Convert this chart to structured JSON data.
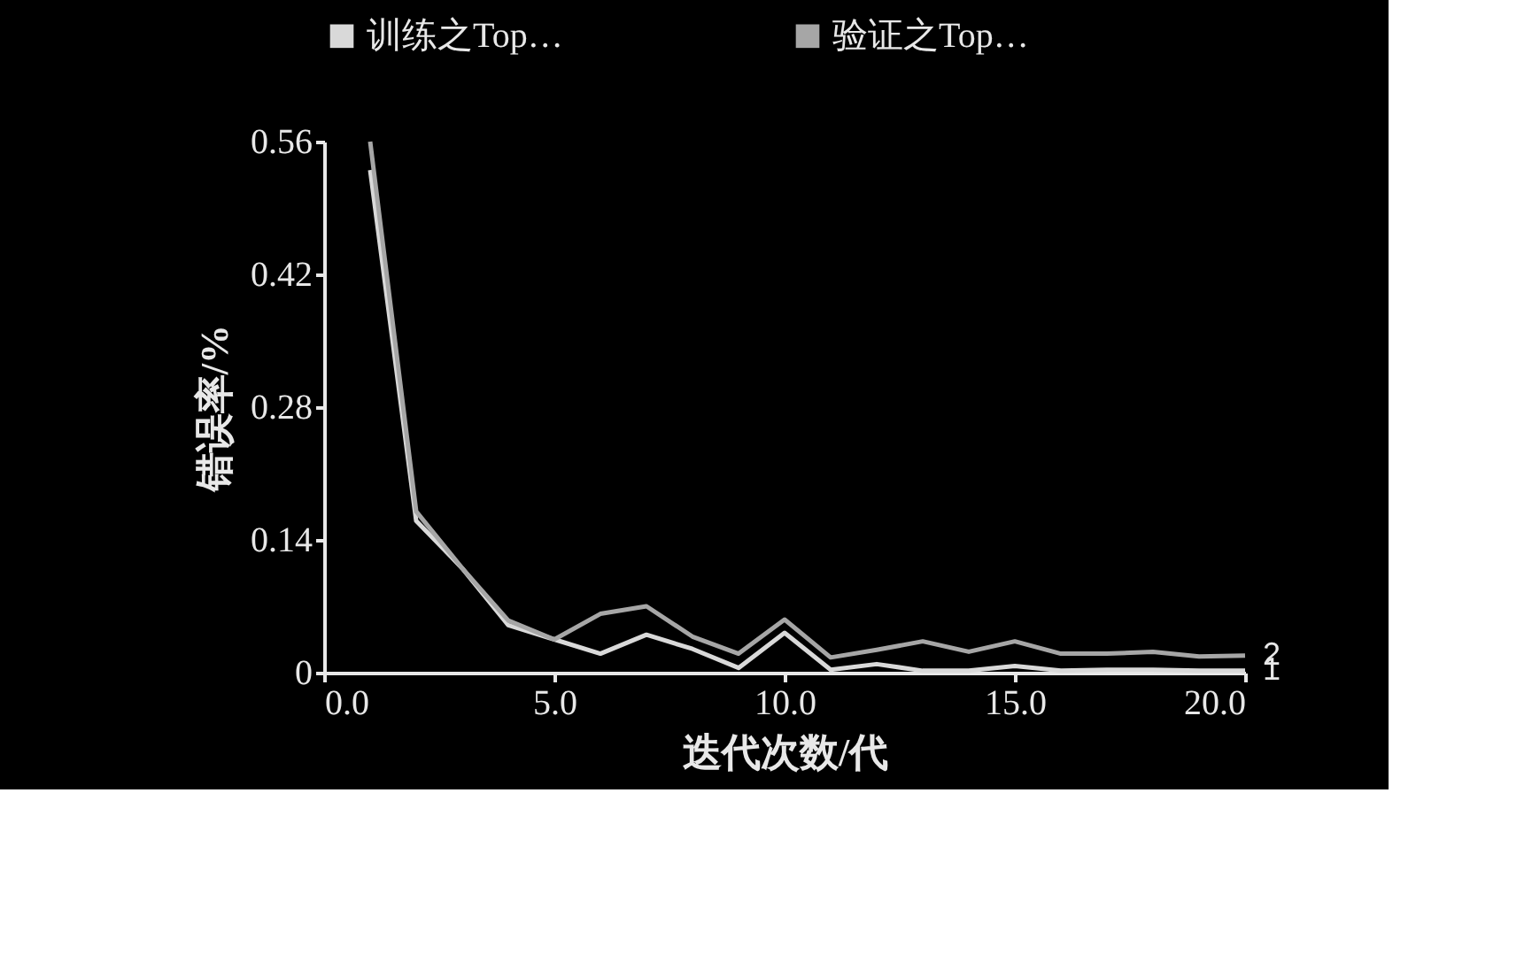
{
  "chart_data": {
    "type": "line",
    "xlabel": "迭代次数/代",
    "ylabel": "错误率/%",
    "x": [
      1,
      2,
      3,
      4,
      5,
      6,
      7,
      8,
      9,
      10,
      11,
      12,
      13,
      14,
      15,
      16,
      17,
      18,
      19,
      20
    ],
    "series": [
      {
        "name": "训练之Top…",
        "color": "#d9d9d9",
        "values": [
          0.53,
          0.16,
          0.11,
          0.05,
          0.035,
          0.02,
          0.04,
          0.025,
          0.005,
          0.042,
          0.003,
          0.009,
          0.002,
          0.002,
          0.007,
          0.002,
          0.003,
          0.003,
          0.002,
          0.002
        ]
      },
      {
        "name": "验证之Top…",
        "color": "#a6a6a6",
        "values": [
          0.56,
          0.17,
          0.11,
          0.055,
          0.035,
          0.062,
          0.07,
          0.038,
          0.02,
          0.056,
          0.016,
          0.024,
          0.033,
          0.022,
          0.033,
          0.02,
          0.02,
          0.022,
          0.017,
          0.018
        ]
      }
    ],
    "annotations": [
      {
        "text": "1",
        "x": 20,
        "y": 0.002
      },
      {
        "text": "2",
        "x": 20,
        "y": 0.018
      }
    ],
    "xlim": [
      0,
      20
    ],
    "xticks": [
      {
        "value": 0,
        "label": "0.0"
      },
      {
        "value": 5,
        "label": "5.0"
      },
      {
        "value": 10,
        "label": "10.0"
      },
      {
        "value": 15,
        "label": "15.0"
      },
      {
        "value": 20,
        "label": "20.0"
      }
    ],
    "ylim": [
      0,
      0.56
    ],
    "yticks": [
      {
        "value": 0,
        "label": "0"
      },
      0.14,
      0.28,
      0.42,
      0.56
    ],
    "legend": "top left",
    "grid": false,
    "marker": "none",
    "line_style": "solid"
  }
}
